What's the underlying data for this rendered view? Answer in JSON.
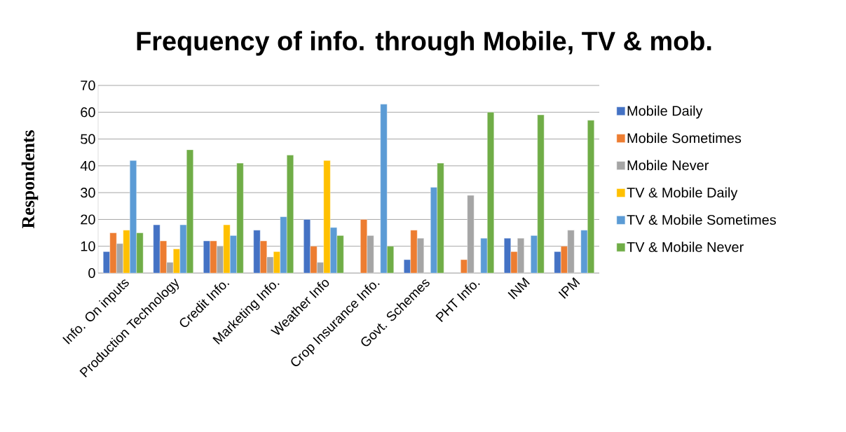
{
  "chart_data": {
    "type": "bar",
    "title": "Frequency of info. through Mobile, TV & mob.",
    "ylabel": "Respondents",
    "categories": [
      "Info. On inputs",
      "Production Technology",
      "Credit Info.",
      "Marketing Info.",
      "Weather Info",
      "Crop Insurance Info.",
      "Govt. Schemes",
      "PHT Info.",
      "INM",
      "IPM"
    ],
    "series": [
      {
        "name": "Mobile Daily",
        "color": "#4472c4",
        "values": [
          8,
          18,
          12,
          16,
          20,
          null,
          5,
          null,
          13,
          8
        ]
      },
      {
        "name": "Mobile Sometimes",
        "color": "#ed7d31",
        "values": [
          15,
          12,
          12,
          12,
          10,
          20,
          16,
          5,
          8,
          10
        ]
      },
      {
        "name": "Mobile Never",
        "color": "#a5a5a5",
        "values": [
          11,
          4,
          10,
          6,
          4,
          14,
          13,
          29,
          13,
          16
        ]
      },
      {
        "name": "TV & Mobile Daily",
        "color": "#ffc000",
        "values": [
          16,
          9,
          18,
          8,
          42,
          null,
          null,
          null,
          null,
          null
        ]
      },
      {
        "name": "TV & Mobile Sometimes",
        "color": "#5b9bd5",
        "values": [
          42,
          18,
          14,
          21,
          17,
          63,
          32,
          13,
          14,
          16
        ]
      },
      {
        "name": "TV & Mobile Never",
        "color": "#70ad47",
        "values": [
          15,
          46,
          41,
          44,
          14,
          10,
          41,
          60,
          59,
          57
        ]
      }
    ],
    "ylim": [
      0,
      70
    ],
    "yticks": [
      0,
      10,
      20,
      30,
      40,
      50,
      60,
      70
    ],
    "grid": "y",
    "legend": "right"
  }
}
